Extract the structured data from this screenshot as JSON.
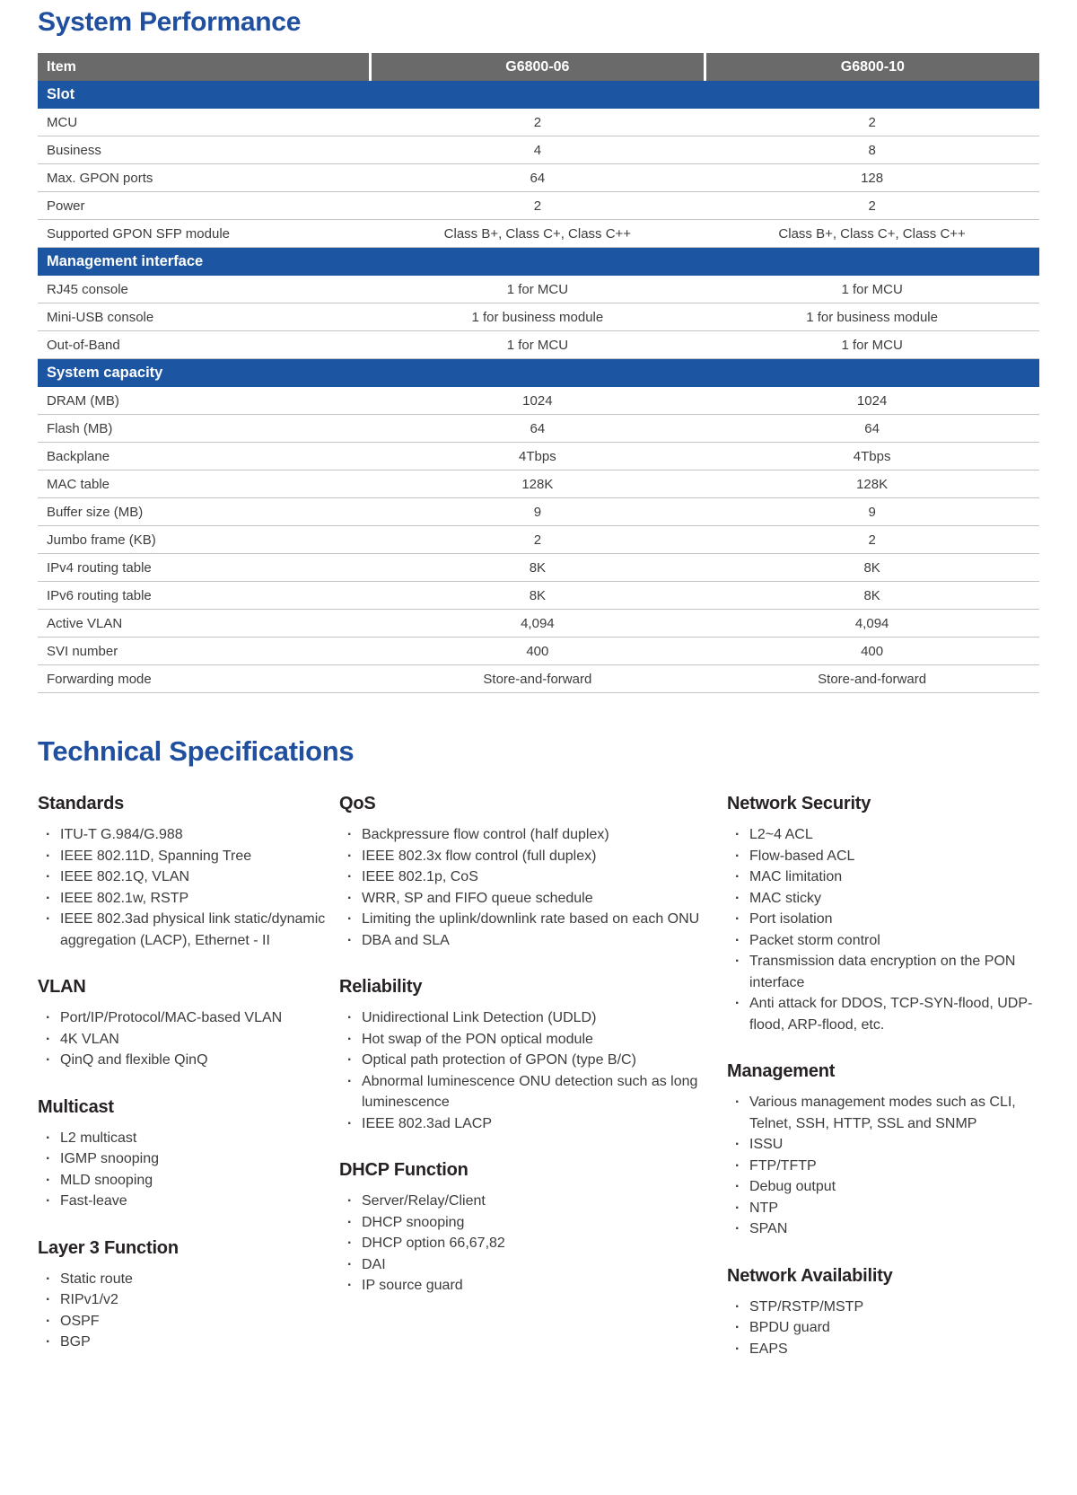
{
  "colors": {
    "title_blue": "#1f4f9e",
    "bar_blue": "#1c56a2",
    "header_gray": "#6a6a6a"
  },
  "section1_title": "System Performance",
  "section2_title": "Technical Specifications",
  "table": {
    "columns": [
      "Item",
      "G6800-06",
      "G6800-10"
    ],
    "groups": [
      {
        "title": "Slot",
        "rows": [
          [
            "MCU",
            "2",
            "2"
          ],
          [
            "Business",
            "4",
            "8"
          ],
          [
            "Max. GPON ports",
            "64",
            "128"
          ],
          [
            "Power",
            "2",
            "2"
          ],
          [
            "Supported GPON SFP module",
            "Class B+, Class C+, Class C++",
            "Class B+, Class C+, Class C++"
          ]
        ]
      },
      {
        "title": "Management interface",
        "rows": [
          [
            "RJ45 console",
            "1 for MCU",
            "1 for MCU"
          ],
          [
            "Mini-USB console",
            "1 for business module",
            "1 for business module"
          ],
          [
            "Out-of-Band",
            "1 for MCU",
            "1 for MCU"
          ]
        ]
      },
      {
        "title": "System capacity",
        "rows": [
          [
            "DRAM (MB)",
            "1024",
            "1024"
          ],
          [
            "Flash (MB)",
            "64",
            "64"
          ],
          [
            "Backplane",
            "4Tbps",
            "4Tbps"
          ],
          [
            "MAC table",
            "128K",
            "128K"
          ],
          [
            "Buffer size (MB)",
            "9",
            "9"
          ],
          [
            "Jumbo frame (KB)",
            "2",
            "2"
          ],
          [
            "IPv4 routing table",
            "8K",
            "8K"
          ],
          [
            "IPv6 routing table",
            "8K",
            "8K"
          ],
          [
            "Active VLAN",
            "4,094",
            "4,094"
          ],
          [
            "SVI number",
            "400",
            "400"
          ],
          [
            "Forwarding mode",
            "Store-and-forward",
            "Store-and-forward"
          ]
        ]
      }
    ]
  },
  "specs": {
    "columns": [
      [
        {
          "title": "Standards",
          "items": [
            "ITU-T G.984/G.988",
            "IEEE 802.11D, Spanning Tree",
            "IEEE 802.1Q, VLAN",
            "IEEE 802.1w, RSTP",
            "IEEE 802.3ad physical link static/dynamic aggregation (LACP), Ethernet - II"
          ]
        },
        {
          "title": "VLAN",
          "items": [
            "Port/IP/Protocol/MAC-based VLAN",
            "4K VLAN",
            "QinQ and flexible QinQ"
          ]
        },
        {
          "title": "Multicast",
          "items": [
            "L2 multicast",
            "IGMP snooping",
            "MLD snooping",
            "Fast-leave"
          ]
        },
        {
          "title": "Layer 3 Function",
          "items": [
            "Static route",
            "RIPv1/v2",
            "OSPF",
            "BGP"
          ]
        }
      ],
      [
        {
          "title": "QoS",
          "items": [
            "Backpressure flow control (half duplex)",
            "IEEE 802.3x flow control (full duplex)",
            "IEEE 802.1p, CoS",
            "WRR, SP and FIFO queue schedule",
            "Limiting the uplink/downlink rate based on each ONU",
            "DBA and SLA"
          ]
        },
        {
          "title": "Reliability",
          "items": [
            "Unidirectional Link Detection (UDLD)",
            "Hot swap of the PON optical module",
            "Optical path protection of GPON (type B/C)",
            "Abnormal luminescence ONU detection such as long luminescence",
            "IEEE 802.3ad LACP"
          ]
        },
        {
          "title": "DHCP Function",
          "items": [
            "Server/Relay/Client",
            "DHCP snooping",
            "DHCP option 66,67,82",
            "DAI",
            "IP source guard"
          ]
        }
      ],
      [
        {
          "title": "Network Security",
          "items": [
            "L2~4 ACL",
            "Flow-based ACL",
            "MAC limitation",
            "MAC sticky",
            "Port isolation",
            "Packet storm control",
            "Transmission data encryption on the PON interface",
            "Anti attack for DDOS, TCP-SYN-flood, UDP-flood, ARP-flood, etc."
          ]
        },
        {
          "title": "Management",
          "items": [
            "Various management modes such as CLI, Telnet, SSH, HTTP, SSL and SNMP",
            "ISSU",
            "FTP/TFTP",
            "Debug output",
            "NTP",
            "SPAN"
          ]
        },
        {
          "title": "Network Availability",
          "items": [
            "STP/RSTP/MSTP",
            "BPDU guard",
            "EAPS"
          ]
        }
      ]
    ]
  }
}
